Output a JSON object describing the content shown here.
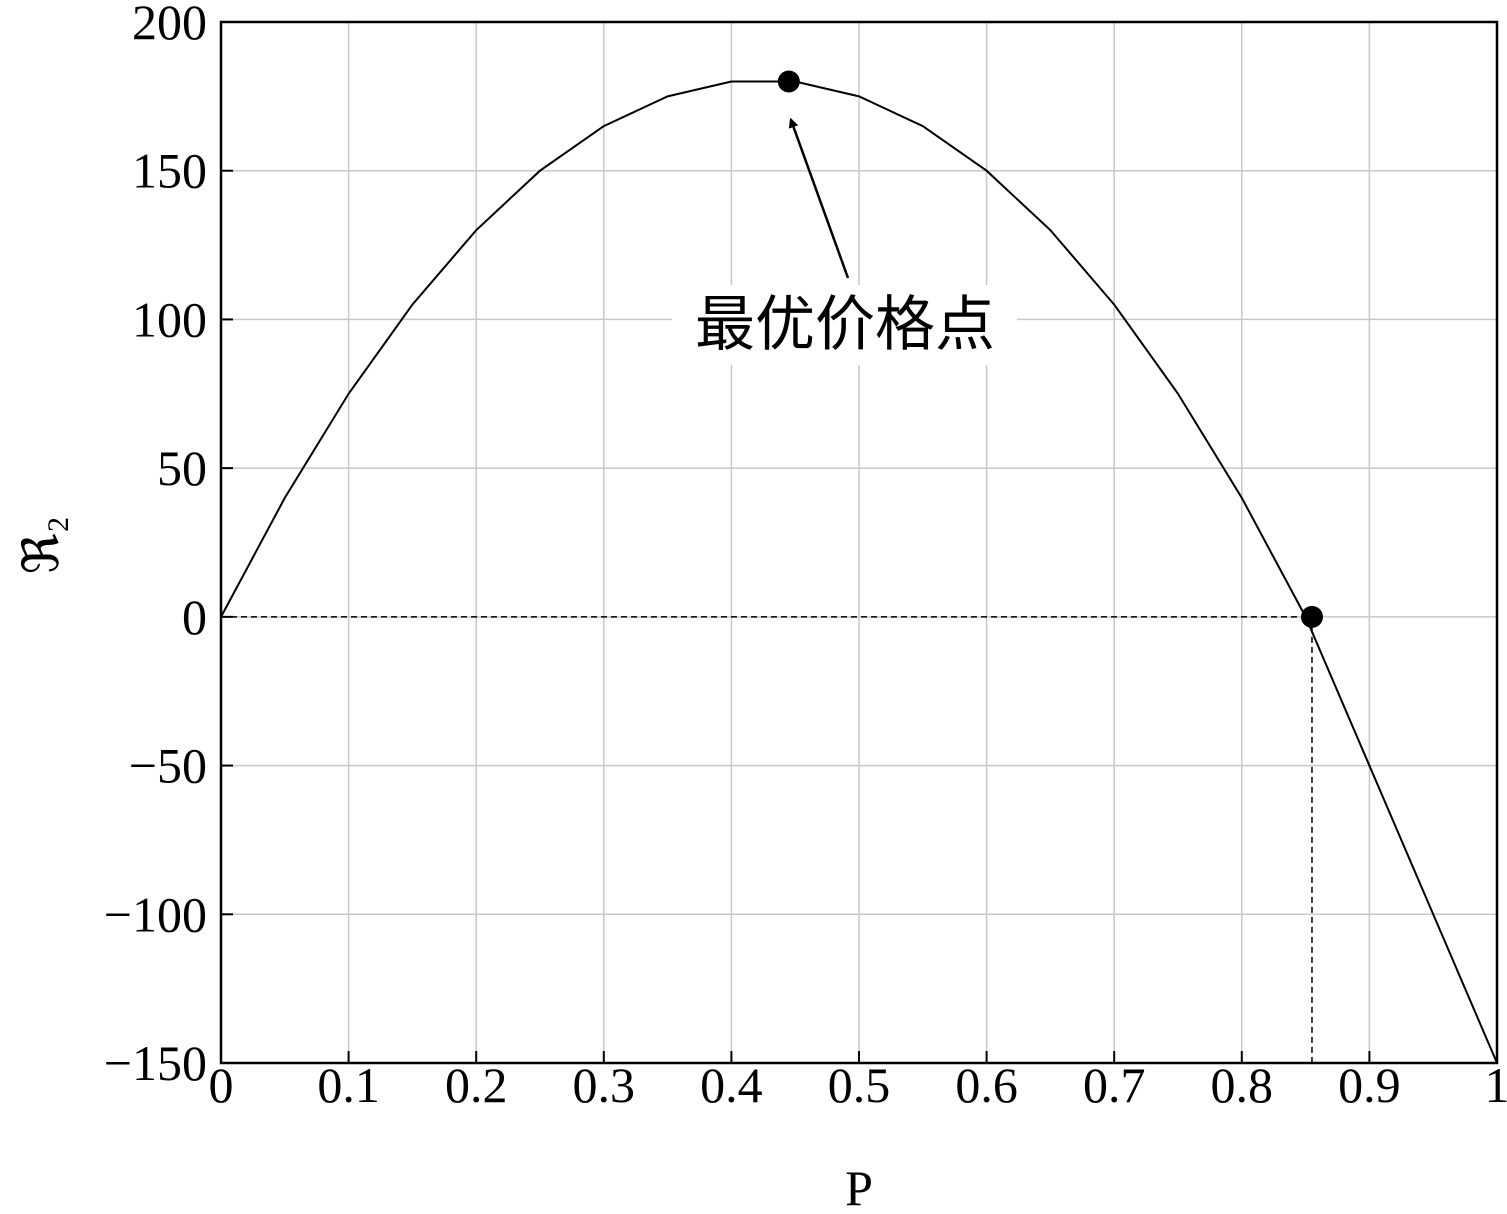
{
  "chart_data": {
    "type": "line",
    "x_label": "P",
    "y_label": "ℜ₂",
    "x": [
      0,
      0.05,
      0.1,
      0.15,
      0.2,
      0.25,
      0.3,
      0.35,
      0.4,
      0.45,
      0.5,
      0.55,
      0.6,
      0.65,
      0.7,
      0.75,
      0.8,
      0.85,
      0.9,
      0.95,
      1
    ],
    "series": [
      {
        "color": "#000000",
        "values": [
          0,
          40,
          75,
          105,
          130,
          150,
          165,
          175,
          180,
          180,
          175,
          165,
          150,
          130,
          105,
          75,
          40,
          0,
          -50,
          -100,
          -150
        ]
      }
    ],
    "points": {
      "x": [
        0.445,
        0.855
      ],
      "values": [
        180,
        0
      ],
      "color": "#000000"
    },
    "annotation": "最优价格点",
    "xlim": [
      0,
      1
    ],
    "ylim": [
      -150,
      200
    ],
    "xticks": [
      0,
      0.1,
      0.2,
      0.3,
      0.4,
      0.5,
      0.6,
      0.7,
      0.8,
      0.9,
      1
    ],
    "yticks": [
      {
        "value": -150,
        "label": "−150"
      },
      {
        "value": -100,
        "label": "−100"
      },
      {
        "value": -50,
        "label": "−50"
      },
      0,
      50,
      100,
      150,
      200
    ],
    "grid": true
  }
}
